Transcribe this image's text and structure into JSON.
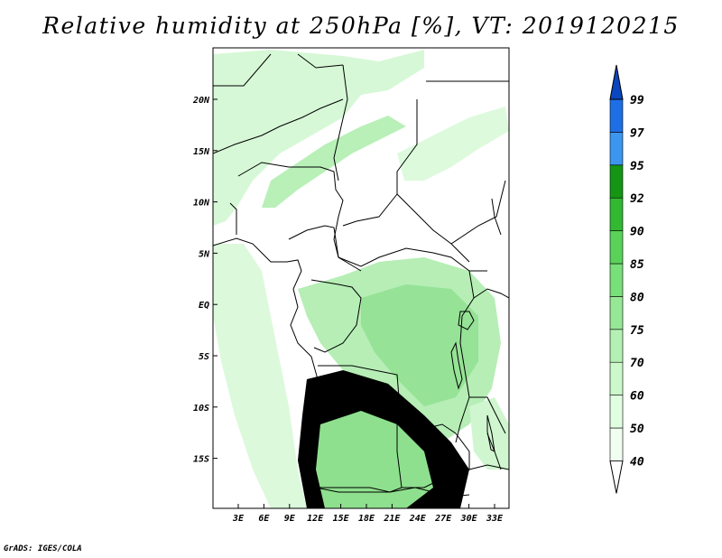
{
  "title": "Relative humidity at 250hPa [%], VT: 2019120215",
  "credit": "GrADS: IGES/COLA",
  "map": {
    "lon_ticks": [
      "3E",
      "6E",
      "9E",
      "12E",
      "15E",
      "18E",
      "21E",
      "24E",
      "27E",
      "30E",
      "33E"
    ],
    "lat_ticks": [
      "20N",
      "15N",
      "10N",
      "5N",
      "EQ",
      "5S",
      "10S",
      "15S"
    ]
  },
  "colorbar": {
    "levels": [
      "40",
      "50",
      "60",
      "70",
      "75",
      "80",
      "85",
      "90",
      "92",
      "95",
      "97",
      "99"
    ],
    "colors": [
      "#f0fff0",
      "#e0ffe0",
      "#ccf8cc",
      "#b4f0b4",
      "#96e896",
      "#78e078",
      "#5ad25a",
      "#32b832",
      "#149614",
      "#3c96f0",
      "#1e6ee6",
      "#0a46be"
    ]
  }
}
